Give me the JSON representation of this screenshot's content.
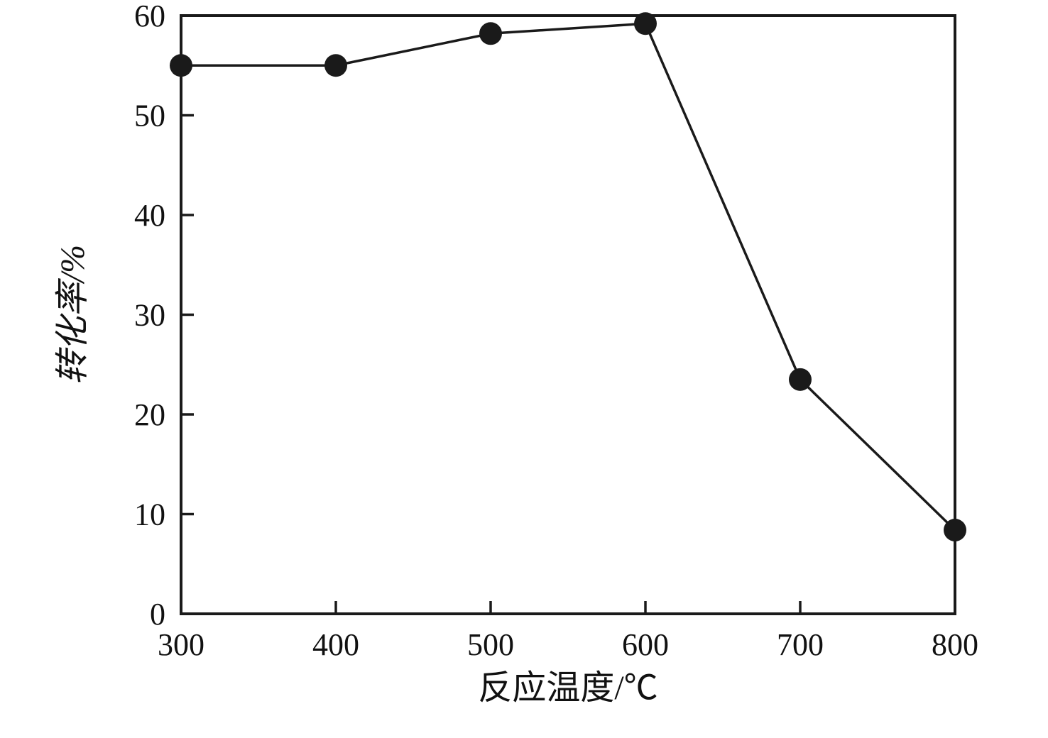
{
  "chart_data": {
    "type": "line",
    "title": "",
    "xlabel": "反应温度/℃",
    "ylabel": "转化率/%",
    "x": [
      300,
      400,
      500,
      600,
      700,
      800
    ],
    "values": [
      55,
      55,
      58.2,
      59.2,
      23.5,
      8.4
    ],
    "xlim": [
      300,
      800
    ],
    "ylim": [
      0,
      60
    ],
    "x_ticks": [
      300,
      400,
      500,
      600,
      700,
      800
    ],
    "y_ticks": [
      0,
      10,
      20,
      30,
      40,
      50,
      60
    ],
    "grid": false,
    "legend": false,
    "marker": "filled-circle",
    "line_color": "#1a1a1a",
    "marker_color": "#1a1a1a",
    "frame_color": "#1a1a1a",
    "background": "#ffffff"
  }
}
